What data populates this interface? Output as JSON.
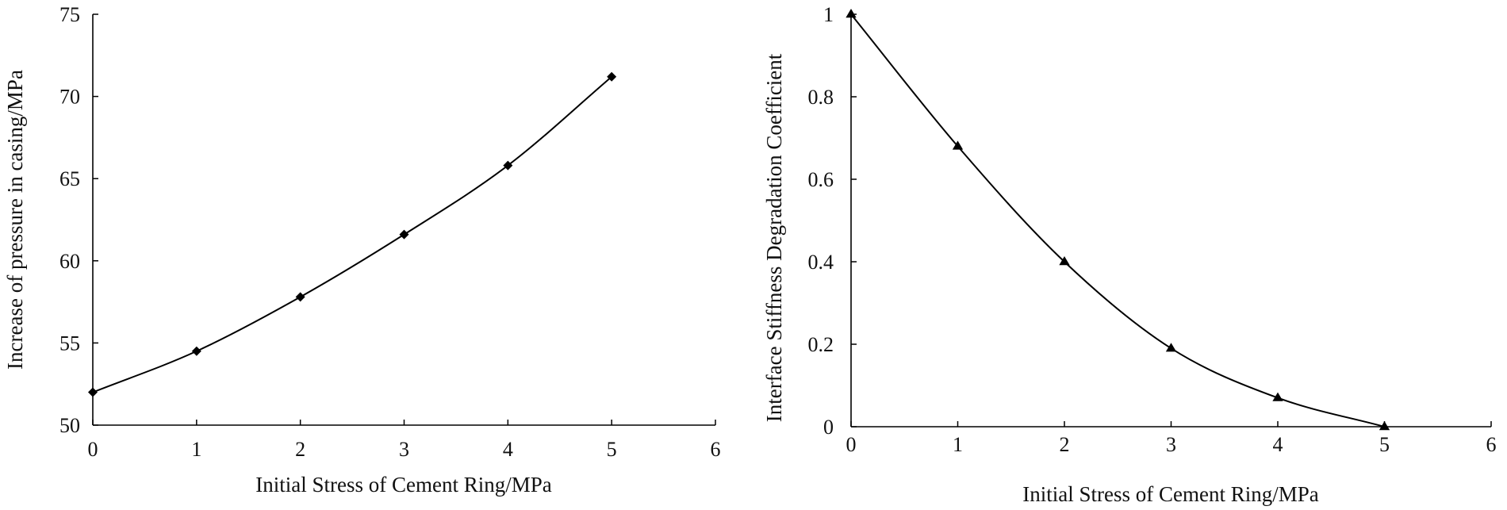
{
  "chart_data": [
    {
      "type": "line",
      "title": "",
      "xlabel": "Initial Stress of Cement Ring/MPa",
      "ylabel": "Increase of pressure in casing/MPa",
      "xlim": [
        0,
        6
      ],
      "ylim": [
        50,
        75
      ],
      "xticks": [
        "0",
        "1",
        "2",
        "3",
        "4",
        "5",
        "6"
      ],
      "yticks": [
        "50",
        "55",
        "60",
        "65",
        "70",
        "75"
      ],
      "marker": "diamond",
      "grid": false,
      "series": [
        {
          "name": "Increase of pressure in casing",
          "x": [
            0,
            1,
            2,
            3,
            4,
            5
          ],
          "values": [
            52.0,
            54.5,
            57.8,
            61.6,
            65.8,
            71.2
          ]
        }
      ]
    },
    {
      "type": "line",
      "title": "",
      "xlabel": "Initial Stress of Cement Ring/MPa",
      "ylabel": "Interface Stiffness Degradation Coefficient",
      "xlim": [
        0,
        6
      ],
      "ylim": [
        0,
        1
      ],
      "xticks": [
        "0",
        "1",
        "2",
        "3",
        "4",
        "5",
        "6"
      ],
      "yticks": [
        "0",
        "0.2",
        "0.4",
        "0.6",
        "0.8",
        "1"
      ],
      "marker": "triangle",
      "grid": false,
      "series": [
        {
          "name": "Interface Stiffness Degradation Coefficient",
          "x": [
            0,
            1,
            2,
            3,
            4,
            5
          ],
          "values": [
            1.0,
            0.68,
            0.4,
            0.19,
            0.07,
            0.0
          ]
        }
      ]
    }
  ]
}
